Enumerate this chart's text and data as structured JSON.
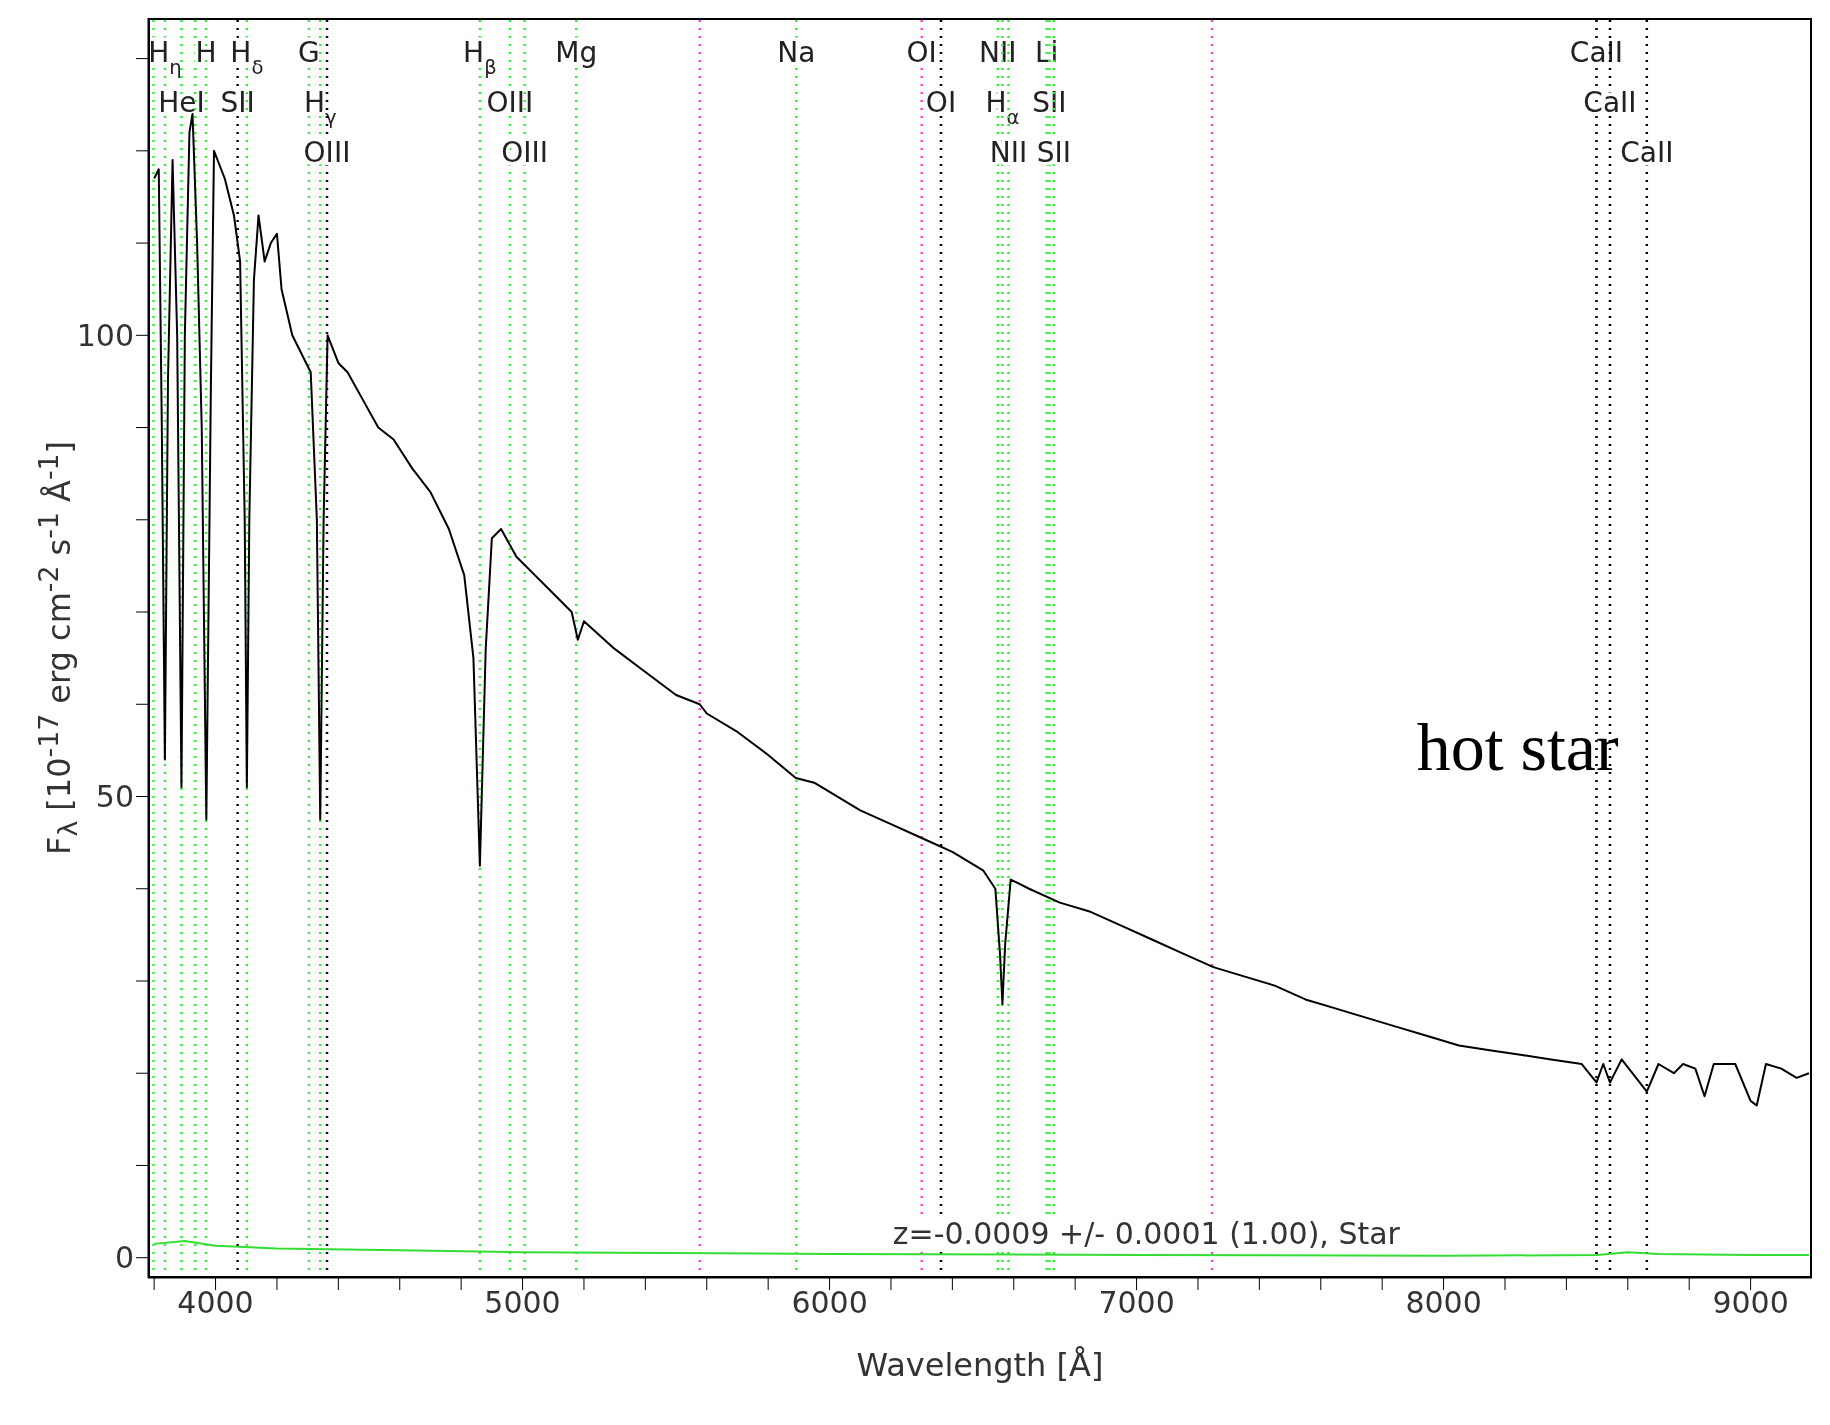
{
  "chart_data": {
    "type": "line",
    "xlabel": "Wavelength [Å]",
    "ylabel": "F$_{λ}$ [10$^{-17}$ erg cm$^{-2}$ s$^{-1}$ Å$^{-1}$]",
    "xlim": [
      3780,
      9200
    ],
    "ylim": [
      -2.2,
      134.4
    ],
    "xticks": [
      {
        "value": 3800,
        "label": null
      },
      4000,
      {
        "value": 4200,
        "label": null
      },
      {
        "value": 4400,
        "label": null
      },
      {
        "value": 4600,
        "label": null
      },
      {
        "value": 4800,
        "label": null
      },
      5000,
      {
        "value": 5200,
        "label": null
      },
      {
        "value": 5400,
        "label": null
      },
      {
        "value": 5600,
        "label": null
      },
      {
        "value": 5800,
        "label": null
      },
      6000,
      {
        "value": 6200,
        "label": null
      },
      {
        "value": 6400,
        "label": null
      },
      {
        "value": 6600,
        "label": null
      },
      {
        "value": 6800,
        "label": null
      },
      7000,
      {
        "value": 7200,
        "label": null
      },
      {
        "value": 7400,
        "label": null
      },
      {
        "value": 7600,
        "label": null
      },
      {
        "value": 7800,
        "label": null
      },
      8000,
      {
        "value": 8200,
        "label": null
      },
      {
        "value": 8400,
        "label": null
      },
      {
        "value": 8600,
        "label": null
      },
      {
        "value": 8800,
        "label": null
      },
      9000
    ],
    "yticks": [
      0,
      {
        "value": 10,
        "label": null
      },
      {
        "value": 20,
        "label": null
      },
      {
        "value": 30,
        "label": null
      },
      {
        "value": 40,
        "label": null
      },
      50,
      {
        "value": 60,
        "label": null
      },
      {
        "value": 70,
        "label": null
      },
      {
        "value": 80,
        "label": null
      },
      {
        "value": 90,
        "label": null
      },
      100,
      {
        "value": 110,
        "label": null
      },
      {
        "value": 120,
        "label": null
      },
      {
        "value": 130,
        "label": null
      }
    ],
    "grid": false,
    "legend": false,
    "line_style": "solid",
    "marker": "none",
    "series": [
      {
        "type": "line",
        "color": "#000000",
        "x": [
          3800,
          3815,
          3825,
          3835,
          3845,
          3860,
          3875,
          3889,
          3900,
          3915,
          3925,
          3940,
          3955,
          3970,
          3985,
          3995,
          4030,
          4060,
          4080,
          4095,
          4102,
          4110,
          4125,
          4140,
          4160,
          4180,
          4200,
          4215,
          4250,
          4280,
          4310,
          4330,
          4341,
          4352,
          4365,
          4400,
          4430,
          4480,
          4530,
          4580,
          4640,
          4700,
          4760,
          4810,
          4840,
          4861,
          4880,
          4900,
          4930,
          4980,
          5040,
          5100,
          5160,
          5180,
          5200,
          5300,
          5400,
          5500,
          5577,
          5600,
          5700,
          5800,
          5890,
          5950,
          6000,
          6100,
          6200,
          6300,
          6400,
          6500,
          6540,
          6555,
          6563,
          6572,
          6590,
          6650,
          6750,
          6850,
          6950,
          7050,
          7150,
          7250,
          7350,
          7450,
          7550,
          7650,
          7750,
          7850,
          7950,
          8050,
          8150,
          8250,
          8350,
          8450,
          8498,
          8520,
          8542,
          8580,
          8662,
          8700,
          8750,
          8780,
          8820,
          8850,
          8880,
          8950,
          9000,
          9020,
          9050,
          9100,
          9150,
          9190
        ],
        "values": [
          117,
          118,
          90,
          54,
          95,
          119,
          100,
          51,
          100,
          122,
          124,
          110,
          90,
          47.5,
          95,
          120,
          117,
          113,
          108,
          80,
          51,
          80,
          106,
          113,
          108,
          110,
          111,
          105,
          100,
          98,
          96,
          80,
          47.5,
          80,
          100,
          97,
          96,
          93,
          90,
          88.7,
          85.6,
          83,
          79,
          74,
          65,
          42.5,
          66,
          78,
          79,
          76,
          74,
          72,
          70,
          67,
          69,
          66,
          63.5,
          61,
          60,
          59,
          57,
          54.5,
          52,
          51.5,
          50.5,
          48.5,
          47,
          45.5,
          44,
          42,
          40,
          33,
          27.5,
          34,
          41,
          40,
          38.5,
          37.5,
          36,
          34.5,
          33,
          31.5,
          30.5,
          29.5,
          28,
          27,
          26,
          25,
          24,
          23,
          22.5,
          22,
          21.5,
          21,
          19,
          21,
          19,
          21.5,
          18,
          21,
          20,
          21,
          20.5,
          17.5,
          21,
          21,
          17,
          16.5,
          21,
          20.5,
          19.5,
          20
        ]
      },
      {
        "type": "line",
        "color": "#33dd33",
        "x": [
          3800,
          3900,
          4000,
          4200,
          4600,
          5000,
          6000,
          7000,
          8000,
          8500,
          8600,
          8700,
          9000,
          9190
        ],
        "values": [
          1.5,
          1.8,
          1.3,
          1,
          0.8,
          0.6,
          0.4,
          0.3,
          0.2,
          0.3,
          0.6,
          0.4,
          0.3,
          0.3
        ]
      }
    ],
    "ref_lines": [
      {
        "axis": "x",
        "value": 3798,
        "label": null,
        "color": "#33ee33",
        "line_style": "dotted"
      },
      {
        "axis": "x",
        "value": 3835,
        "label": "H$_{η}$",
        "color": "#33ee33",
        "line_style": "dotted"
      },
      {
        "axis": "x",
        "value": 3889,
        "label": "HeI",
        "color": "#33ee33",
        "line_style": "dotted"
      },
      {
        "axis": "x",
        "value": 3934,
        "label": null,
        "color": "#33ee33",
        "line_style": "dotted"
      },
      {
        "axis": "x",
        "value": 3969,
        "label": "H",
        "color": "#33ee33",
        "line_style": "dotted"
      },
      {
        "axis": "x",
        "value": 4072,
        "label": "SII",
        "color": "#000000",
        "line_style": "dotted"
      },
      {
        "axis": "x",
        "value": 4102,
        "label": "H$_{δ}$",
        "color": "#33ee33",
        "line_style": "dotted"
      },
      {
        "axis": "x",
        "value": 4304,
        "label": "G",
        "color": "#33ee33",
        "line_style": "dotted"
      },
      {
        "axis": "x",
        "value": 4341,
        "label": "H$_{γ}$",
        "color": "#33ee33",
        "line_style": "dotted"
      },
      {
        "axis": "x",
        "value": 4363,
        "label": "OIII",
        "color": "#000000",
        "line_style": "dotted"
      },
      {
        "axis": "x",
        "value": 4861,
        "label": "H$_{β}$",
        "color": "#33ee33",
        "line_style": "dotted"
      },
      {
        "axis": "x",
        "value": 4959,
        "label": "OIII",
        "color": "#33ee33",
        "line_style": "dotted"
      },
      {
        "axis": "x",
        "value": 5007,
        "label": "OIII",
        "color": "#33ee33",
        "line_style": "dotted"
      },
      {
        "axis": "x",
        "value": 5175,
        "label": "Mg",
        "color": "#33ee33",
        "line_style": "dotted"
      },
      {
        "axis": "x",
        "value": 5577,
        "label": null,
        "color": "#ee44ee",
        "line_style": "dotted"
      },
      {
        "axis": "x",
        "value": 5892,
        "label": "Na",
        "color": "#33ee33",
        "line_style": "dotted"
      },
      {
        "axis": "x",
        "value": 6300,
        "label": "OI",
        "color": "#ee44ee",
        "line_style": "dotted"
      },
      {
        "axis": "x",
        "value": 6363,
        "label": "OI",
        "color": "#000000",
        "line_style": "dotted"
      },
      {
        "axis": "x",
        "value": 6548,
        "label": "NII",
        "color": "#33ee33",
        "line_style": "dotted"
      },
      {
        "axis": "x",
        "value": 6563,
        "label": "H$_{α}$",
        "color": "#33ee33",
        "line_style": "dotted"
      },
      {
        "axis": "x",
        "value": 6583,
        "label": "NII",
        "color": "#33ee33",
        "line_style": "dotted"
      },
      {
        "axis": "x",
        "value": 6707,
        "label": "Li",
        "color": "#33ee33",
        "line_style": "dotted"
      },
      {
        "axis": "x",
        "value": 6716,
        "label": "SII",
        "color": "#33ee33",
        "line_style": "dotted"
      },
      {
        "axis": "x",
        "value": 6731,
        "label": "SII",
        "color": "#33ee33",
        "line_style": "dotted"
      },
      {
        "axis": "x",
        "value": 7246,
        "label": null,
        "color": "#ee44ee",
        "line_style": "dotted"
      },
      {
        "axis": "x",
        "value": 8498,
        "label": "CaII",
        "color": "#000000",
        "line_style": "dotted"
      },
      {
        "axis": "x",
        "value": 8542,
        "label": "CaII",
        "color": "#000000",
        "line_style": "dotted"
      },
      {
        "axis": "x",
        "value": 8662,
        "label": "CaII",
        "color": "#000000",
        "line_style": "dotted"
      }
    ],
    "annotations": [
      "z=-0.0009 +/- 0.0001 (1.00), Star",
      "hot star"
    ]
  }
}
